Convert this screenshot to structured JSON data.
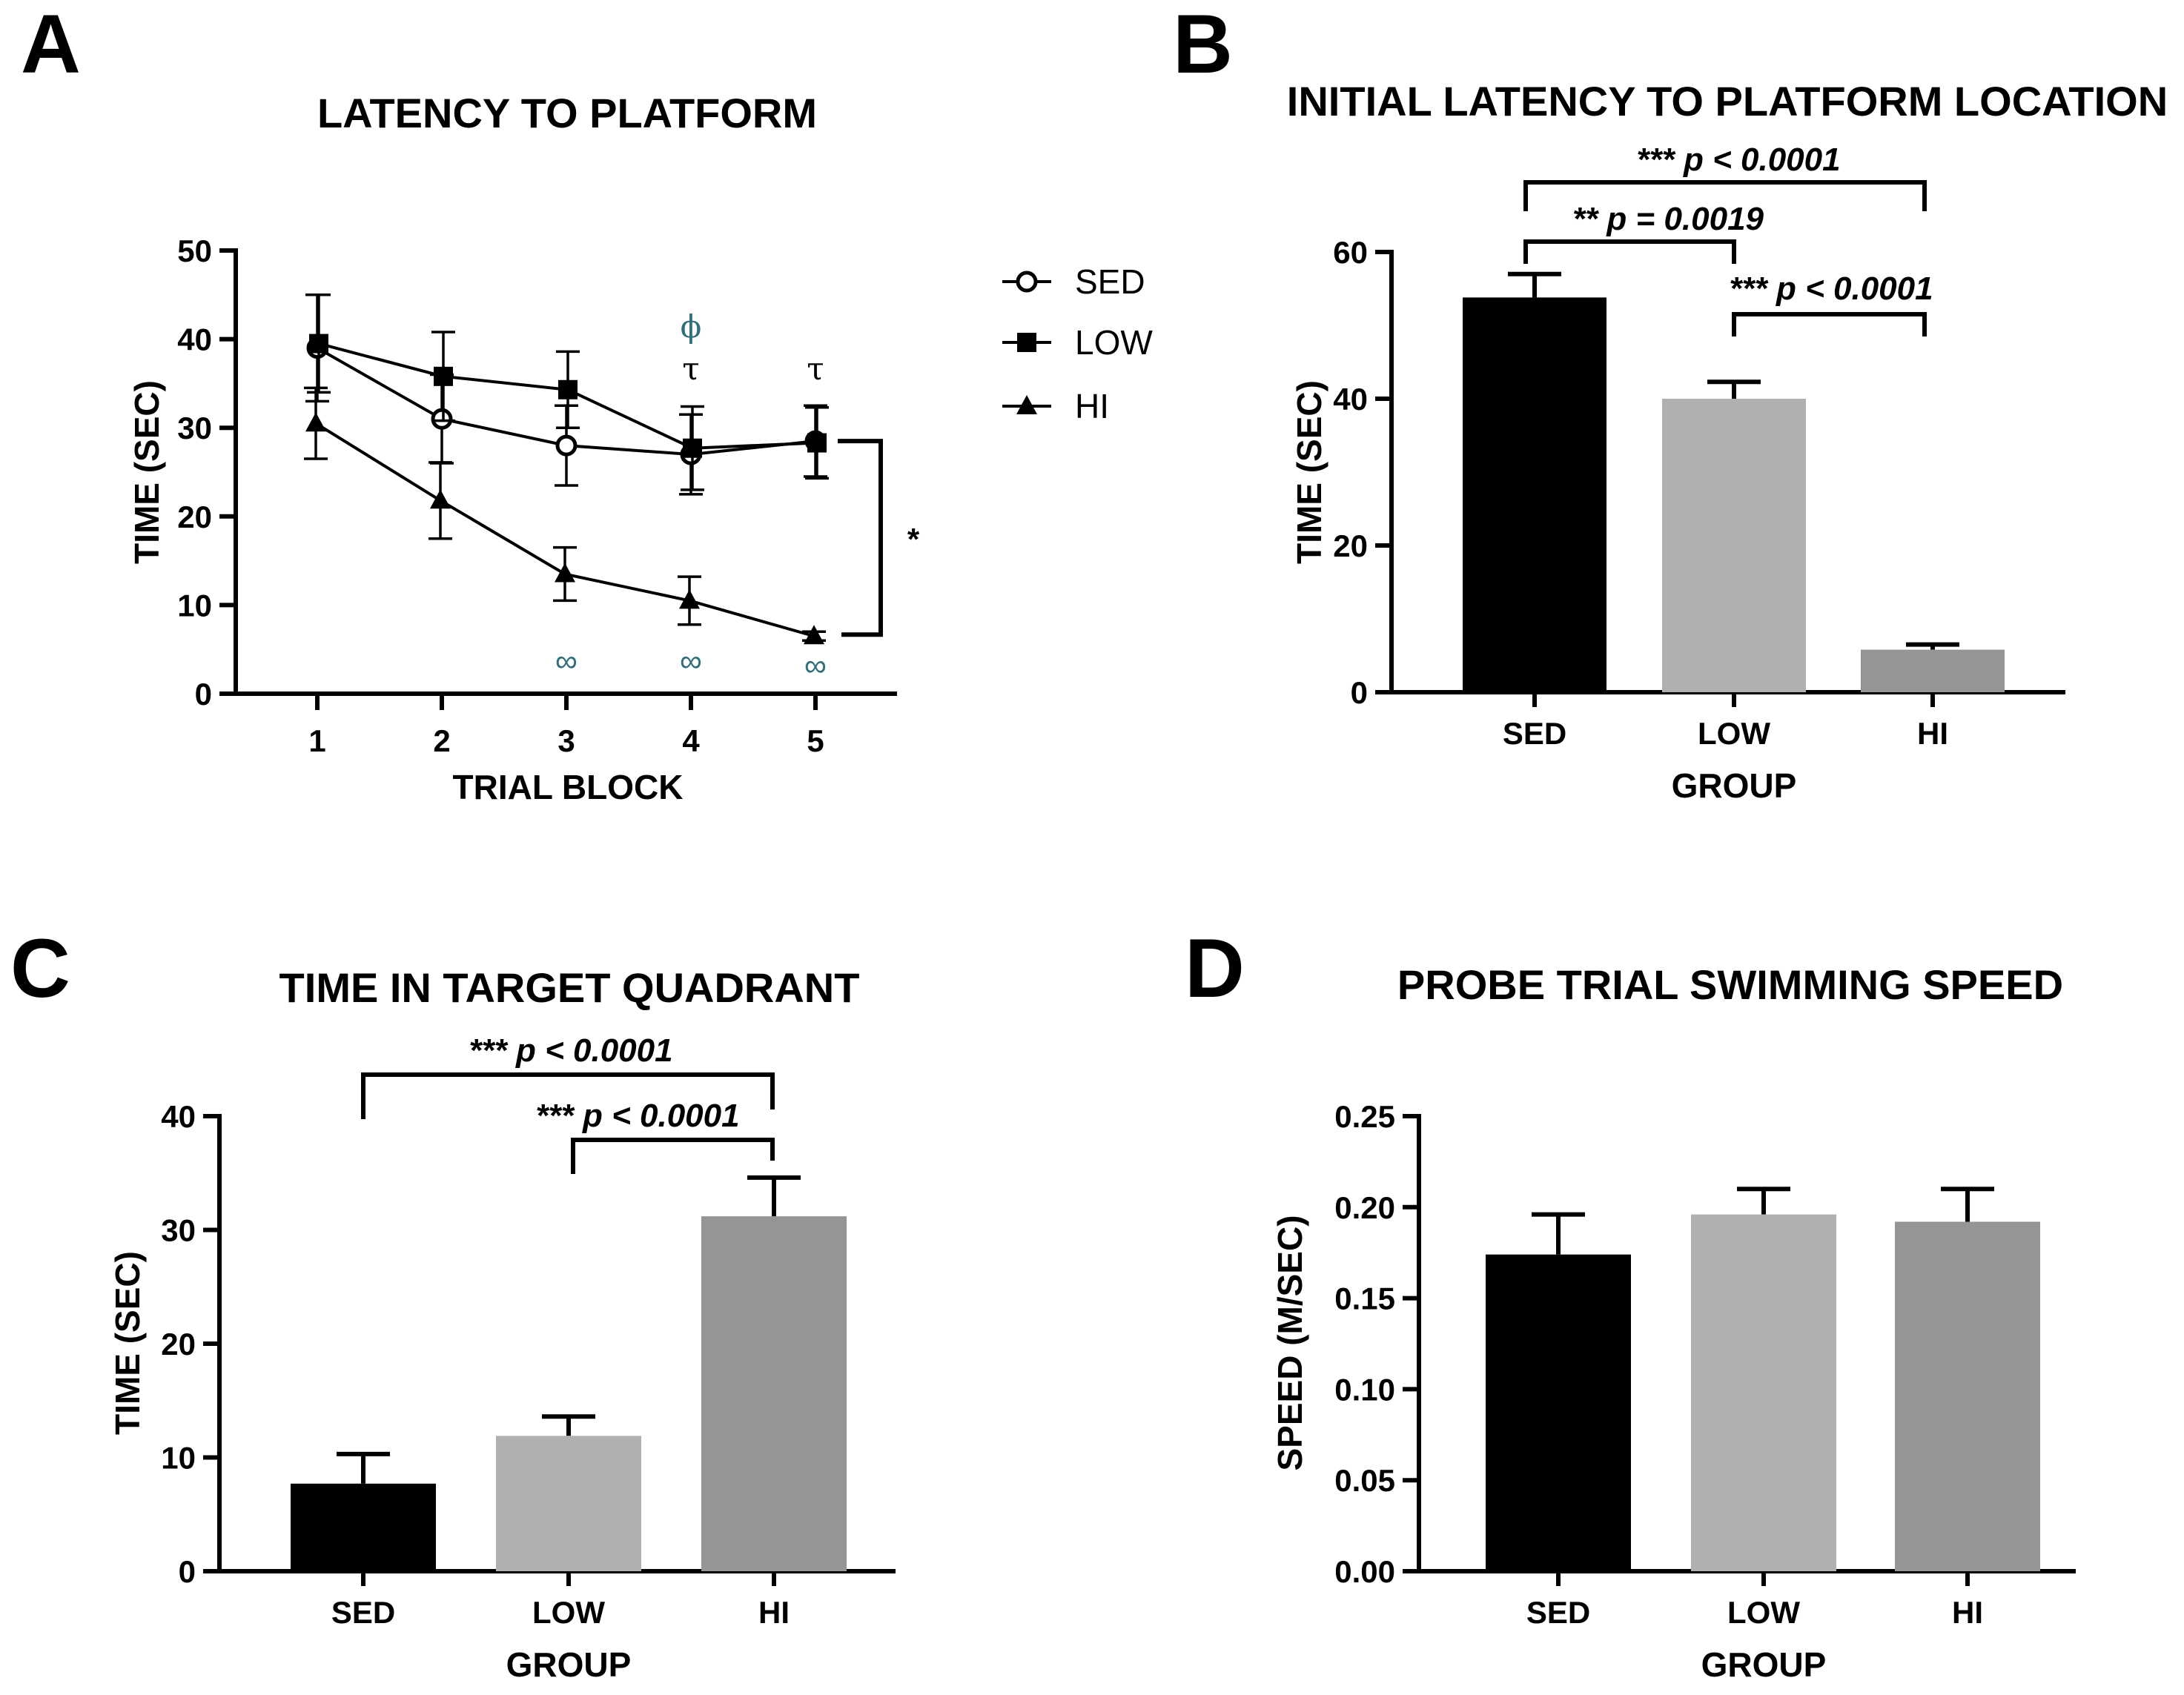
{
  "colors": {
    "SED": "#000000",
    "LOW": "#b0b0b2",
    "HI": "#959595",
    "accent_teal": "#2f6f7a"
  },
  "chart_data": [
    {
      "panel": "A",
      "type": "line",
      "title": "LATENCY TO PLATFORM",
      "xlabel": "TRIAL BLOCK",
      "ylabel": "TIME (SEC)",
      "x": [
        1,
        2,
        3,
        4,
        5
      ],
      "ylim": [
        0,
        50
      ],
      "yticks": [
        0,
        10,
        20,
        30,
        40,
        50
      ],
      "series": [
        {
          "name": "SED",
          "marker": "open-circle",
          "values": [
            39,
            31,
            28,
            27,
            28.5
          ],
          "errors": [
            6,
            5,
            4.5,
            4.5,
            4
          ]
        },
        {
          "name": "LOW",
          "marker": "filled-square",
          "values": [
            39.5,
            35.8,
            34.3,
            27.7,
            28.3
          ],
          "errors": [
            5.5,
            5,
            4.3,
            4.7,
            4
          ]
        },
        {
          "name": "HI",
          "marker": "filled-triangle",
          "values": [
            30.5,
            21.8,
            13.5,
            10.5,
            6.5
          ],
          "errors": [
            4,
            4.3,
            3,
            2.7,
            0.5
          ]
        }
      ],
      "legend": [
        "SED",
        "LOW",
        "HI"
      ],
      "legend_position": "right",
      "annotations": {
        "phi": "ϕ",
        "tau": "τ",
        "infinity": "∞",
        "star": "*",
        "tau_blocks": [
          4,
          5
        ],
        "phi_blocks": [
          4
        ],
        "infinity_blocks": [
          3,
          4,
          5
        ]
      }
    },
    {
      "panel": "B",
      "type": "bar",
      "title": "INITIAL LATENCY TO PLATFORM LOCATION",
      "xlabel": "GROUP",
      "ylabel": "TIME (SEC)",
      "categories": [
        "SED",
        "LOW",
        "HI"
      ],
      "values": [
        53.8,
        40,
        5.8
      ],
      "errors": [
        3.2,
        2.3,
        0.7
      ],
      "ylim": [
        0,
        60
      ],
      "yticks": [
        0,
        20,
        40,
        60
      ],
      "comparisons": [
        {
          "stars": "***",
          "p": "p < 0.0001",
          "pair": [
            "SED",
            "HI"
          ]
        },
        {
          "stars": "**",
          "p": "p = 0.0019",
          "pair": [
            "SED",
            "LOW"
          ]
        },
        {
          "stars": "***",
          "p": "p < 0.0001",
          "pair": [
            "LOW",
            "HI"
          ]
        }
      ]
    },
    {
      "panel": "C",
      "type": "bar",
      "title": "TIME IN TARGET QUADRANT",
      "xlabel": "GROUP",
      "ylabel": "TIME (SEC)",
      "categories": [
        "SED",
        "LOW",
        "HI"
      ],
      "values": [
        7.7,
        11.9,
        31.2
      ],
      "errors": [
        2.6,
        1.7,
        3.4
      ],
      "ylim": [
        0,
        40
      ],
      "yticks": [
        0,
        10,
        20,
        30,
        40
      ],
      "comparisons": [
        {
          "stars": "***",
          "p": "p < 0.0001",
          "pair": [
            "SED",
            "HI"
          ]
        },
        {
          "stars": "***",
          "p": "p < 0.0001",
          "pair": [
            "LOW",
            "HI"
          ]
        }
      ]
    },
    {
      "panel": "D",
      "type": "bar",
      "title": "PROBE TRIAL SWIMMING SPEED",
      "xlabel": "GROUP",
      "ylabel": "SPEED (M/SEC)",
      "categories": [
        "SED",
        "LOW",
        "HI"
      ],
      "values": [
        0.174,
        0.196,
        0.192
      ],
      "errors": [
        0.022,
        0.014,
        0.018
      ],
      "ylim": [
        0,
        0.25
      ],
      "yticks": [
        "0.00",
        "0.05",
        "0.10",
        "0.15",
        "0.20",
        "0.25"
      ],
      "comparisons": []
    }
  ]
}
